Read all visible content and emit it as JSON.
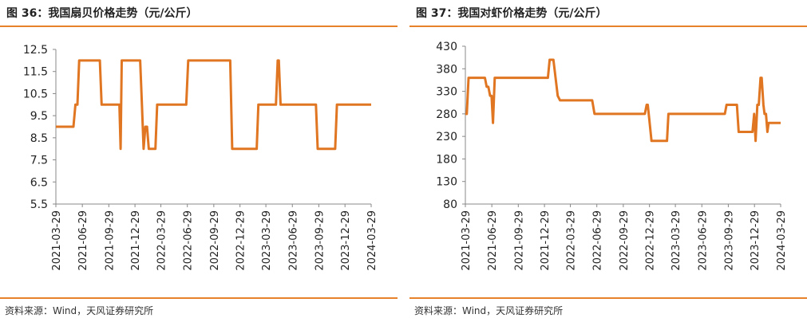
{
  "colors": {
    "accent": "#e8822a",
    "line": "#e07622",
    "axis": "#888888",
    "text": "#222222"
  },
  "panels": [
    {
      "title": "图 36：我国扇贝价格走势（元/公斤）",
      "source": "资料来源：Wind，天风证券研究所"
    },
    {
      "title": "图 37：我国对虾价格走势（元/公斤）",
      "source": "资料来源：Wind，天风证券研究所"
    }
  ],
  "chart_data": [
    {
      "type": "line",
      "title": "图 36：我国扇贝价格走势（元/公斤）",
      "xlabel": "",
      "ylabel": "",
      "ylim": [
        5.5,
        12.5
      ],
      "yticks": [
        12.5,
        11.5,
        10.5,
        9.5,
        8.5,
        7.5,
        6.5,
        5.5
      ],
      "xlim": [
        "2021-03-29",
        "2024-03-29"
      ],
      "xticks": [
        "2021-03-29",
        "2021-06-29",
        "2021-09-29",
        "2021-12-29",
        "2022-03-29",
        "2022-06-29",
        "2022-09-29",
        "2022-12-29",
        "2023-03-29",
        "2023-06-29",
        "2023-09-29",
        "2023-12-29",
        "2024-03-29"
      ],
      "grid": false,
      "legend": "none",
      "series": [
        {
          "points": [
            [
              "2021-03-29",
              9.0
            ],
            [
              "2021-05-29",
              9.0
            ],
            [
              "2021-06-05",
              10.0
            ],
            [
              "2021-06-12",
              10.0
            ],
            [
              "2021-06-18",
              12.0
            ],
            [
              "2021-08-29",
              12.0
            ],
            [
              "2021-09-04",
              10.0
            ],
            [
              "2021-11-05",
              10.0
            ],
            [
              "2021-11-09",
              8.0
            ],
            [
              "2021-11-13",
              12.0
            ],
            [
              "2022-01-16",
              12.0
            ],
            [
              "2022-01-22",
              10.0
            ],
            [
              "2022-01-28",
              8.0
            ],
            [
              "2022-02-03",
              9.0
            ],
            [
              "2022-02-09",
              9.0
            ],
            [
              "2022-02-15",
              8.0
            ],
            [
              "2022-03-10",
              8.0
            ],
            [
              "2022-03-16",
              10.0
            ],
            [
              "2022-06-25",
              10.0
            ],
            [
              "2022-07-02",
              12.0
            ],
            [
              "2022-11-25",
              12.0
            ],
            [
              "2022-12-02",
              8.0
            ],
            [
              "2023-02-25",
              8.0
            ],
            [
              "2023-03-03",
              10.0
            ],
            [
              "2023-05-03",
              10.0
            ],
            [
              "2023-05-09",
              12.0
            ],
            [
              "2023-05-13",
              12.0
            ],
            [
              "2023-05-19",
              10.0
            ],
            [
              "2023-09-19",
              10.0
            ],
            [
              "2023-09-25",
              8.0
            ],
            [
              "2023-11-25",
              8.0
            ],
            [
              "2023-12-01",
              10.0
            ],
            [
              "2024-03-29",
              10.0
            ]
          ]
        }
      ]
    },
    {
      "type": "line",
      "title": "图 37：我国对虾价格走势（元/公斤）",
      "xlabel": "",
      "ylabel": "",
      "ylim": [
        80,
        430
      ],
      "yticks": [
        430,
        380,
        330,
        280,
        230,
        180,
        130,
        80
      ],
      "xlim": [
        "2021-03-29",
        "2024-03-29"
      ],
      "xticks": [
        "2021-03-29",
        "2021-06-29",
        "2021-09-29",
        "2021-12-29",
        "2022-03-29",
        "2022-06-29",
        "2022-09-29",
        "2022-12-29",
        "2023-03-29",
        "2023-06-29",
        "2023-09-29",
        "2023-12-29",
        "2024-03-29"
      ],
      "grid": false,
      "legend": "none",
      "series": [
        {
          "points": [
            [
              "2021-03-29",
              280
            ],
            [
              "2021-04-03",
              280
            ],
            [
              "2021-04-09",
              360
            ],
            [
              "2021-06-05",
              360
            ],
            [
              "2021-06-11",
              340
            ],
            [
              "2021-06-17",
              340
            ],
            [
              "2021-06-23",
              320
            ],
            [
              "2021-06-28",
              320
            ],
            [
              "2021-07-03",
              260
            ],
            [
              "2021-07-09",
              360
            ],
            [
              "2022-01-10",
              360
            ],
            [
              "2022-01-16",
              400
            ],
            [
              "2022-01-29",
              400
            ],
            [
              "2022-02-13",
              320
            ],
            [
              "2022-02-21",
              310
            ],
            [
              "2022-06-13",
              310
            ],
            [
              "2022-06-21",
              280
            ],
            [
              "2022-12-13",
              280
            ],
            [
              "2022-12-19",
              300
            ],
            [
              "2022-12-23",
              300
            ],
            [
              "2022-12-28",
              270
            ],
            [
              "2023-01-05",
              220
            ],
            [
              "2023-02-28",
              220
            ],
            [
              "2023-03-05",
              280
            ],
            [
              "2023-09-17",
              280
            ],
            [
              "2023-09-23",
              300
            ],
            [
              "2023-10-29",
              300
            ],
            [
              "2023-11-04",
              240
            ],
            [
              "2023-12-22",
              240
            ],
            [
              "2023-12-28",
              280
            ],
            [
              "2024-01-02",
              220
            ],
            [
              "2024-01-08",
              300
            ],
            [
              "2024-01-13",
              300
            ],
            [
              "2024-01-19",
              360
            ],
            [
              "2024-01-23",
              360
            ],
            [
              "2024-01-29",
              300
            ],
            [
              "2024-02-02",
              280
            ],
            [
              "2024-02-07",
              280
            ],
            [
              "2024-02-12",
              240
            ],
            [
              "2024-02-16",
              260
            ],
            [
              "2024-03-29",
              260
            ]
          ]
        }
      ]
    }
  ]
}
